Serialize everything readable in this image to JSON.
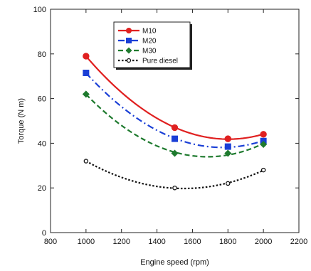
{
  "chart_data": {
    "type": "line",
    "xlabel": "Engine speed (rpm)",
    "ylabel": "Torque (N m)",
    "xlim": [
      800,
      2200
    ],
    "ylim": [
      0,
      100
    ],
    "xticks": [
      800,
      1000,
      1200,
      1400,
      1600,
      1800,
      2000,
      2200
    ],
    "yticks": [
      0,
      20,
      40,
      60,
      80,
      100
    ],
    "grid": false,
    "legend_position": "top-center",
    "series": [
      {
        "name": "M10",
        "color": "#e02020",
        "marker": "circle",
        "line_style": "solid",
        "x": [
          1000,
          1500,
          1800,
          2000
        ],
        "y": [
          79,
          47,
          42,
          44
        ]
      },
      {
        "name": "M20",
        "color": "#1a3fd6",
        "marker": "square",
        "line_style": "dash-dot",
        "x": [
          1000,
          1500,
          1800,
          2000
        ],
        "y": [
          71.5,
          42,
          38.5,
          41
        ]
      },
      {
        "name": "M30",
        "color": "#1e7a2e",
        "marker": "diamond",
        "line_style": "dashed",
        "x": [
          1000,
          1500,
          1800,
          2000
        ],
        "y": [
          62,
          35.5,
          35.5,
          39.5
        ]
      },
      {
        "name": "Pure diesel",
        "color": "#111111",
        "marker": "open-circle",
        "line_style": "dotted",
        "x": [
          1000,
          1500,
          1800,
          2000
        ],
        "y": [
          32,
          20,
          22,
          28
        ]
      }
    ]
  }
}
